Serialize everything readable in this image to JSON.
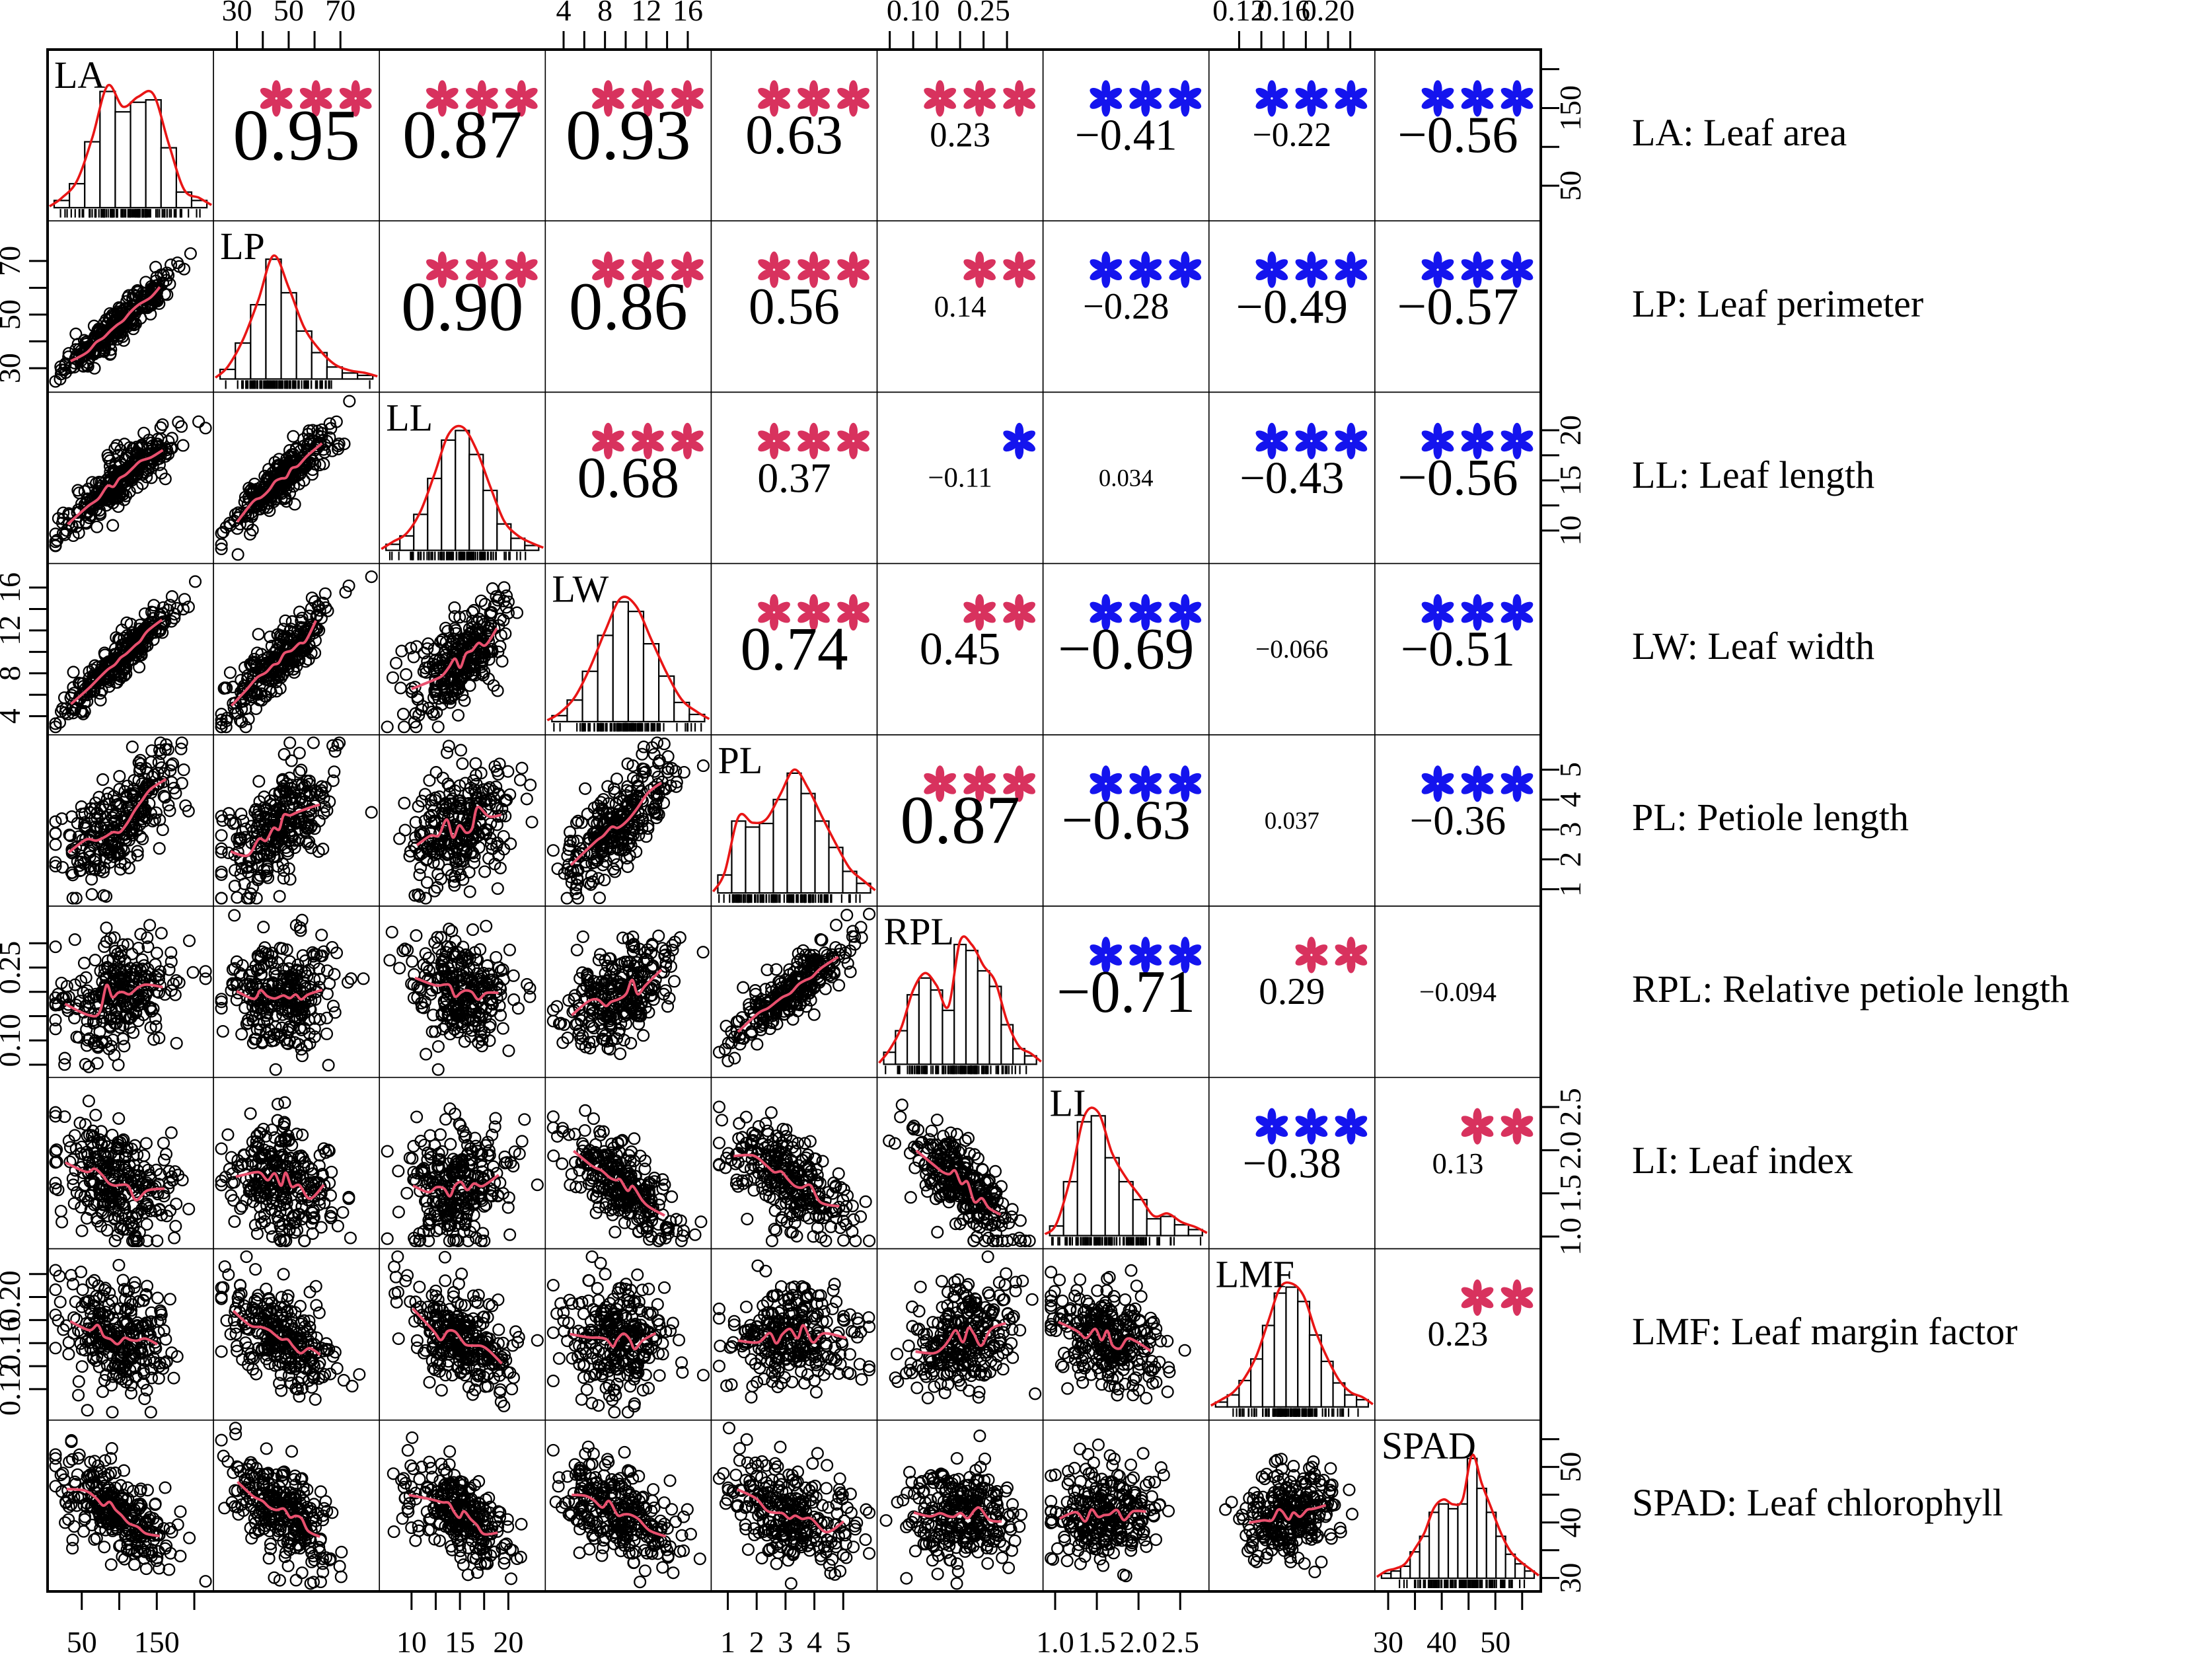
{
  "chart_data": {
    "type": "scatter",
    "subtype": "scatterplot-matrix-pairs-plot",
    "title": "",
    "description": "9x9 pairs plot: diagonal = histograms with red density curves and rug, lower triangle = scatterplots with red smooth line, upper triangle = Pearson correlation coefficients with significance stars (red = positive, blue = negative)",
    "variables": [
      {
        "code": "LA",
        "legend": "LA: Leaf area",
        "range": [
          15,
          215
        ],
        "mean": 100,
        "sd": 38,
        "ticks": [
          50,
          100,
          150,
          200
        ],
        "tick_labels": [
          {
            "v": 50,
            "t": "50"
          },
          {
            "v": 150,
            "t": "150"
          }
        ],
        "hist": [
          0.06,
          0.2,
          0.55,
          0.97,
          0.8,
          0.88,
          0.9,
          0.5,
          0.13,
          0.06
        ]
      },
      {
        "code": "LP",
        "legend": "LP: Leaf perimeter",
        "range": [
          24,
          82
        ],
        "mean": 47,
        "sd": 10,
        "ticks": [
          30,
          40,
          50,
          60,
          70
        ],
        "tick_labels": [
          {
            "v": 30,
            "t": "30"
          },
          {
            "v": 50,
            "t": "50"
          },
          {
            "v": 70,
            "t": "70"
          }
        ],
        "hist": [
          0.08,
          0.3,
          0.62,
          1.0,
          0.72,
          0.4,
          0.22,
          0.1,
          0.05,
          0.03
        ]
      },
      {
        "code": "LL",
        "legend": "LL: Leaf length",
        "range": [
          7.5,
          23
        ],
        "mean": 15,
        "sd": 2.6,
        "ticks": [
          10,
          12.5,
          15,
          17.5,
          20
        ],
        "tick_labels": [
          {
            "v": 10,
            "t": "10"
          },
          {
            "v": 15,
            "t": "15"
          },
          {
            "v": 20,
            "t": "20"
          }
        ],
        "hist": [
          0.05,
          0.12,
          0.3,
          0.6,
          0.92,
          1.0,
          0.8,
          0.5,
          0.22,
          0.1,
          0.04
        ]
      },
      {
        "code": "LW",
        "legend": "LW: Leaf width",
        "range": [
          3,
          17.5
        ],
        "mean": 9.3,
        "sd": 2.6,
        "ticks": [
          4,
          6,
          8,
          10,
          12,
          14,
          16
        ],
        "tick_labels": [
          {
            "v": 4,
            "t": "4"
          },
          {
            "v": 8,
            "t": "8"
          },
          {
            "v": 12,
            "t": "12"
          },
          {
            "v": 16,
            "t": "16"
          }
        ],
        "hist": [
          0.05,
          0.18,
          0.42,
          0.72,
          1.0,
          0.92,
          0.65,
          0.38,
          0.16,
          0.06
        ]
      },
      {
        "code": "PL",
        "legend": "PL: Petiole length",
        "range": [
          0.7,
          5.9
        ],
        "mean": 3.2,
        "sd": 1.05,
        "ticks": [
          1,
          2,
          3,
          4,
          5
        ],
        "tick_labels": [
          {
            "v": 1,
            "t": "1"
          },
          {
            "v": 2,
            "t": "2"
          },
          {
            "v": 3,
            "t": "3"
          },
          {
            "v": 4,
            "t": "4"
          },
          {
            "v": 5,
            "t": "5"
          }
        ],
        "hist": [
          0.15,
          0.6,
          0.55,
          0.58,
          0.78,
          1.0,
          0.83,
          0.6,
          0.38,
          0.18,
          0.08
        ]
      },
      {
        "code": "RPL",
        "legend": "RPL: Relative petiole length",
        "range": [
          0.04,
          0.36
        ],
        "mean": 0.2,
        "sd": 0.055,
        "ticks": [
          0.05,
          0.1,
          0.15,
          0.2,
          0.25,
          0.3
        ],
        "tick_labels": [
          {
            "v": 0.1,
            "t": "0.10"
          },
          {
            "v": 0.25,
            "t": "0.25"
          }
        ],
        "hist": [
          0.1,
          0.28,
          0.58,
          0.72,
          0.62,
          0.45,
          1.0,
          0.95,
          0.78,
          0.65,
          0.33,
          0.13,
          0.07
        ]
      },
      {
        "code": "LI",
        "legend": "LI: Leaf index",
        "range": [
          0.95,
          2.75
        ],
        "mean": 1.62,
        "sd": 0.33,
        "ticks": [
          1.0,
          1.5,
          2.0,
          2.5
        ],
        "tick_labels": [
          {
            "v": 1.0,
            "t": "1.0"
          },
          {
            "v": 1.5,
            "t": "1.5"
          },
          {
            "v": 2.0,
            "t": "2.0"
          },
          {
            "v": 2.5,
            "t": "2.5"
          }
        ],
        "hist": [
          0.08,
          0.45,
          0.95,
          1.0,
          0.65,
          0.45,
          0.3,
          0.14,
          0.16,
          0.09,
          0.05
        ]
      },
      {
        "code": "LMF",
        "legend": "LMF: Leaf margin factor",
        "range": [
          0.1,
          0.235
        ],
        "mean": 0.165,
        "sd": 0.022,
        "ticks": [
          0.12,
          0.14,
          0.16,
          0.18,
          0.2,
          0.22
        ],
        "tick_labels": [
          {
            "v": 0.12,
            "t": "0.12"
          },
          {
            "v": 0.16,
            "t": "0.16"
          },
          {
            "v": 0.2,
            "t": "0.20"
          }
        ],
        "hist": [
          0.04,
          0.1,
          0.22,
          0.4,
          0.68,
          0.95,
          1.0,
          0.88,
          0.6,
          0.38,
          0.2,
          0.1,
          0.06
        ]
      },
      {
        "code": "SPAD",
        "legend": "SPAD: Leaf chlorophyll",
        "range": [
          29,
          57
        ],
        "mean": 41.5,
        "sd": 4.6,
        "ticks": [
          30,
          35,
          40,
          45,
          50,
          55
        ],
        "tick_labels": [
          {
            "v": 30,
            "t": "30"
          },
          {
            "v": 40,
            "t": "40"
          },
          {
            "v": 50,
            "t": "50"
          }
        ],
        "hist": [
          0.04,
          0.06,
          0.1,
          0.22,
          0.35,
          0.55,
          0.62,
          0.58,
          0.62,
          1.0,
          0.75,
          0.55,
          0.35,
          0.2,
          0.12,
          0.06
        ]
      }
    ],
    "correlations": [
      {
        "row": 0,
        "col": 1,
        "r": 0.95,
        "text": "0.95",
        "stars": 3
      },
      {
        "row": 0,
        "col": 2,
        "r": 0.87,
        "text": "0.87",
        "stars": 3
      },
      {
        "row": 0,
        "col": 3,
        "r": 0.93,
        "text": "0.93",
        "stars": 3
      },
      {
        "row": 0,
        "col": 4,
        "r": 0.63,
        "text": "0.63",
        "stars": 3
      },
      {
        "row": 0,
        "col": 5,
        "r": 0.23,
        "text": "0.23",
        "stars": 3
      },
      {
        "row": 0,
        "col": 6,
        "r": -0.41,
        "text": "−0.41",
        "stars": 3
      },
      {
        "row": 0,
        "col": 7,
        "r": -0.22,
        "text": "−0.22",
        "stars": 3
      },
      {
        "row": 0,
        "col": 8,
        "r": -0.56,
        "text": "−0.56",
        "stars": 3
      },
      {
        "row": 1,
        "col": 2,
        "r": 0.9,
        "text": "0.90",
        "stars": 3
      },
      {
        "row": 1,
        "col": 3,
        "r": 0.86,
        "text": "0.86",
        "stars": 3
      },
      {
        "row": 1,
        "col": 4,
        "r": 0.56,
        "text": "0.56",
        "stars": 3
      },
      {
        "row": 1,
        "col": 5,
        "r": 0.14,
        "text": "0.14",
        "stars": 2
      },
      {
        "row": 1,
        "col": 6,
        "r": -0.28,
        "text": "−0.28",
        "stars": 3
      },
      {
        "row": 1,
        "col": 7,
        "r": -0.49,
        "text": "−0.49",
        "stars": 3
      },
      {
        "row": 1,
        "col": 8,
        "r": -0.57,
        "text": "−0.57",
        "stars": 3
      },
      {
        "row": 2,
        "col": 3,
        "r": 0.68,
        "text": "0.68",
        "stars": 3
      },
      {
        "row": 2,
        "col": 4,
        "r": 0.37,
        "text": "0.37",
        "stars": 3
      },
      {
        "row": 2,
        "col": 5,
        "r": -0.11,
        "text": "−0.11",
        "stars": 1
      },
      {
        "row": 2,
        "col": 6,
        "r": 0.034,
        "text": "0.034",
        "stars": 0
      },
      {
        "row": 2,
        "col": 7,
        "r": -0.43,
        "text": "−0.43",
        "stars": 3
      },
      {
        "row": 2,
        "col": 8,
        "r": -0.56,
        "text": "−0.56",
        "stars": 3
      },
      {
        "row": 3,
        "col": 4,
        "r": 0.74,
        "text": "0.74",
        "stars": 3
      },
      {
        "row": 3,
        "col": 5,
        "r": 0.45,
        "text": "0.45",
        "stars": 2
      },
      {
        "row": 3,
        "col": 6,
        "r": -0.69,
        "text": "−0.69",
        "stars": 3
      },
      {
        "row": 3,
        "col": 7,
        "r": -0.066,
        "text": "−0.066",
        "stars": 0
      },
      {
        "row": 3,
        "col": 8,
        "r": -0.51,
        "text": "−0.51",
        "stars": 3
      },
      {
        "row": 4,
        "col": 5,
        "r": 0.87,
        "text": "0.87",
        "stars": 3
      },
      {
        "row": 4,
        "col": 6,
        "r": -0.63,
        "text": "−0.63",
        "stars": 3
      },
      {
        "row": 4,
        "col": 7,
        "r": 0.037,
        "text": "0.037",
        "stars": 0
      },
      {
        "row": 4,
        "col": 8,
        "r": -0.36,
        "text": "−0.36",
        "stars": 3
      },
      {
        "row": 5,
        "col": 6,
        "r": -0.71,
        "text": "−0.71",
        "stars": 3
      },
      {
        "row": 5,
        "col": 7,
        "r": 0.29,
        "text": "0.29",
        "stars": 2
      },
      {
        "row": 5,
        "col": 8,
        "r": -0.094,
        "text": "−0.094",
        "stars": 0
      },
      {
        "row": 6,
        "col": 7,
        "r": -0.38,
        "text": "−0.38",
        "stars": 3
      },
      {
        "row": 6,
        "col": 8,
        "r": 0.13,
        "text": "0.13",
        "stars": 2
      },
      {
        "row": 7,
        "col": 8,
        "r": 0.23,
        "text": "0.23",
        "stars": 2
      }
    ],
    "legend": [
      "LA: Leaf area",
      "LP: Leaf perimeter",
      "LL: Leaf length",
      "LW: Leaf width",
      "PL: Petiole length",
      "RPL: Relative petiole length",
      "LI: Leaf index",
      "LMF: Leaf margin factor",
      "SPAD: Leaf chlorophyll"
    ],
    "axis_layout": {
      "top_label_columns": [
        1,
        3,
        5,
        7
      ],
      "bottom_label_columns": [
        0,
        2,
        4,
        6,
        8
      ],
      "left_label_rows": [
        1,
        3,
        5,
        7
      ],
      "right_label_rows": [
        0,
        2,
        4,
        6,
        8
      ],
      "legend_position": "right"
    },
    "style": {
      "positive_star_color": "#d8325e",
      "negative_star_color": "#1414ee",
      "density_curve_color": "#e81515",
      "smooth_line_color": "#e8506e",
      "point_color": "#000000",
      "bar_fill": "#ffffff",
      "frame_color": "#000000",
      "text_color": "#000000",
      "background": "#ffffff"
    }
  }
}
